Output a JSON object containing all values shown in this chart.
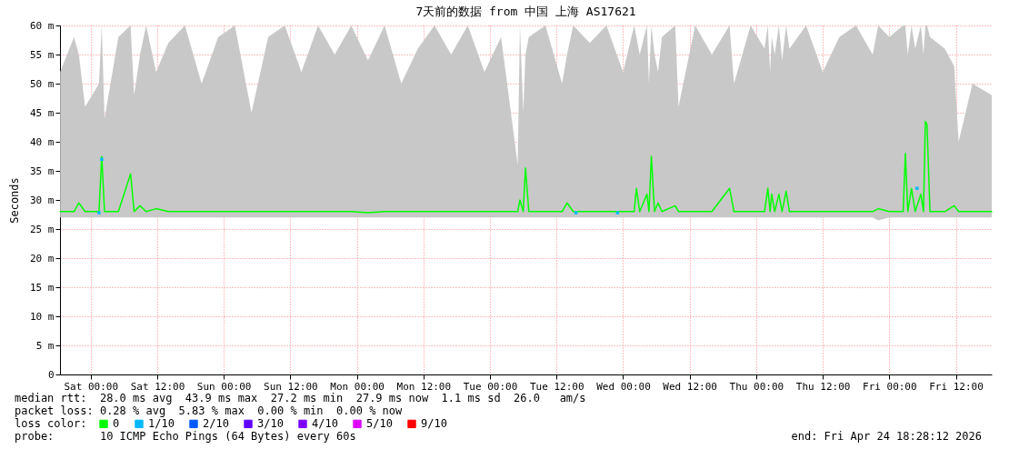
{
  "chart_data": {
    "type": "line",
    "title": "7天前的数据 from 中国 上海 AS17621",
    "ylabel": "Seconds",
    "legend_title": "loss color:",
    "legend": "bottom",
    "grid": true,
    "xlim": [
      "2026-04-17T18:28:12",
      "2026-04-24T18:28:12"
    ],
    "xticks": [
      {
        "value": "2026-04-18T00:00",
        "label": "Sat 00:00"
      },
      {
        "value": "2026-04-18T12:00",
        "label": "Sat 12:00"
      },
      {
        "value": "2026-04-19T00:00",
        "label": "Sun 00:00"
      },
      {
        "value": "2026-04-19T12:00",
        "label": "Sun 12:00"
      },
      {
        "value": "2026-04-20T00:00",
        "label": "Mon 00:00"
      },
      {
        "value": "2026-04-20T12:00",
        "label": "Mon 12:00"
      },
      {
        "value": "2026-04-21T00:00",
        "label": "Tue 00:00"
      },
      {
        "value": "2026-04-21T12:00",
        "label": "Tue 12:00"
      },
      {
        "value": "2026-04-22T00:00",
        "label": "Wed 00:00"
      },
      {
        "value": "2026-04-22T12:00",
        "label": "Wed 12:00"
      },
      {
        "value": "2026-04-23T00:00",
        "label": "Thu 00:00"
      },
      {
        "value": "2026-04-23T12:00",
        "label": "Thu 12:00"
      },
      {
        "value": "2026-04-24T00:00",
        "label": "Fri 00:00"
      },
      {
        "value": "2026-04-24T12:00",
        "label": "Fri 12:00"
      }
    ],
    "ylim": [
      0,
      60
    ],
    "yticks": [
      0,
      {
        "value": 5,
        "label": "5 m"
      },
      {
        "value": 10,
        "label": "10 m"
      },
      {
        "value": 15,
        "label": "15 m"
      },
      {
        "value": 20,
        "label": "20 m"
      },
      {
        "value": 25,
        "label": "25 m"
      },
      {
        "value": 30,
        "label": "30 m"
      },
      {
        "value": 35,
        "label": "35 m"
      },
      {
        "value": 40,
        "label": "40 m"
      },
      {
        "value": 45,
        "label": "45 m"
      },
      {
        "value": 50,
        "label": "50 m"
      },
      {
        "value": 55,
        "label": "55 m"
      },
      {
        "value": 60,
        "label": "60 m"
      }
    ],
    "annotations": [
      "median rtt:  28.0 ms avg  43.9 ms max  27.2 ms min  27.9 ms now  1.1 ms sd  26.0   am/s",
      "packet loss: 0.28 % avg  5.83 % max  0.00 % min  0.00 % now",
      "probe:       10 ICMP Echo Pings (64 Bytes) every 60s",
      "end: Fri Apr 24 18:28:12 2026"
    ],
    "series": [
      {
        "name": "0",
        "color": "#00ff00",
        "x": [
          "2026-04-17T18:30",
          "2026-04-17T21:00",
          "2026-04-17T21:52",
          "2026-04-17T23:00",
          "2026-04-18T01:30",
          "2026-04-18T02:00",
          "2026-04-18T02:30",
          "2026-04-18T05:00",
          "2026-04-18T07:12",
          "2026-04-18T07:50",
          "2026-04-18T08:54",
          "2026-04-18T10:00",
          "2026-04-18T11:48",
          "2026-04-18T14:00",
          "2026-04-18T17:00",
          "2026-04-18T20:00",
          "2026-04-18T23:00",
          "2026-04-19T02:00",
          "2026-04-19T05:00",
          "2026-04-19T08:00",
          "2026-04-19T11:00",
          "2026-04-19T14:00",
          "2026-04-19T17:00",
          "2026-04-19T20:00",
          "2026-04-19T23:00",
          "2026-04-20T02:00",
          "2026-04-20T05:00",
          "2026-04-20T08:00",
          "2026-04-20T11:00",
          "2026-04-20T14:00",
          "2026-04-20T17:00",
          "2026-04-20T20:00",
          "2026-04-20T23:00",
          "2026-04-21T02:00",
          "2026-04-21T05:00",
          "2026-04-21T05:24",
          "2026-04-21T06:00",
          "2026-04-21T06:24",
          "2026-04-21T07:00",
          "2026-04-21T10:00",
          "2026-04-21T13:00",
          "2026-04-21T13:54",
          "2026-04-21T15:00",
          "2026-04-21T18:00",
          "2026-04-21T21:00",
          "2026-04-22T00:00",
          "2026-04-22T02:00",
          "2026-04-22T02:24",
          "2026-04-22T03:00",
          "2026-04-22T04:18",
          "2026-04-22T04:40",
          "2026-04-22T05:06",
          "2026-04-22T05:40",
          "2026-04-22T06:18",
          "2026-04-22T07:00",
          "2026-04-22T09:24",
          "2026-04-22T10:00",
          "2026-04-22T13:00",
          "2026-04-22T16:00",
          "2026-04-22T19:12",
          "2026-04-22T20:00",
          "2026-04-22T23:00",
          "2026-04-23T01:30",
          "2026-04-23T02:06",
          "2026-04-23T02:30",
          "2026-04-23T02:48",
          "2026-04-23T03:20",
          "2026-04-23T04:06",
          "2026-04-23T04:40",
          "2026-04-23T05:24",
          "2026-04-23T06:00",
          "2026-04-23T09:00",
          "2026-04-23T12:00",
          "2026-04-23T15:00",
          "2026-04-23T18:00",
          "2026-04-23T21:00",
          "2026-04-23T22:00",
          "2026-04-24T00:00",
          "2026-04-24T02:30",
          "2026-04-24T02:54",
          "2026-04-24T03:20",
          "2026-04-24T04:00",
          "2026-04-24T04:40",
          "2026-04-24T05:42",
          "2026-04-24T06:10",
          "2026-04-24T06:30",
          "2026-04-24T06:48",
          "2026-04-24T07:20",
          "2026-04-24T10:00",
          "2026-04-24T11:42",
          "2026-04-24T12:30",
          "2026-04-24T15:00",
          "2026-04-24T18:28"
        ],
        "values": [
          28,
          28,
          29.5,
          28,
          28,
          37.5,
          28,
          28,
          34.5,
          28,
          29,
          28,
          28.5,
          28,
          28,
          28,
          28,
          28,
          28,
          28,
          28,
          28,
          28,
          28,
          28,
          27.8,
          28,
          28,
          28,
          28,
          28,
          28,
          28,
          28,
          28,
          30,
          28,
          35.5,
          28,
          28,
          28,
          29.5,
          28,
          28,
          28,
          28,
          28,
          32,
          28,
          31,
          28,
          37.5,
          28,
          29.5,
          28,
          29,
          28,
          28,
          28,
          32,
          28,
          28,
          28,
          32,
          28,
          31,
          28,
          31,
          28,
          31.5,
          28,
          28,
          28,
          28,
          28,
          28,
          28.5,
          28,
          28,
          38,
          28,
          32,
          28,
          31,
          28,
          43.5,
          43,
          28,
          28,
          29,
          28,
          28,
          28
        ],
        "lower": [
          27,
          27,
          27,
          27,
          27,
          27,
          27,
          27,
          27,
          27,
          27,
          27,
          27,
          27,
          27,
          27,
          27,
          27,
          27,
          27,
          27,
          27,
          27,
          27,
          27,
          27,
          27,
          27,
          27,
          27,
          27,
          27,
          27,
          27,
          27,
          27,
          27,
          27,
          27,
          27,
          27,
          27,
          27,
          27,
          27,
          27,
          27,
          27,
          27,
          27,
          27,
          27,
          27,
          27,
          27,
          27,
          27,
          27,
          27,
          27,
          27,
          27,
          27,
          27,
          27,
          27,
          27,
          27,
          27,
          27,
          27,
          27,
          27,
          27,
          27,
          27,
          26.5,
          27,
          27,
          27,
          27,
          27,
          27,
          27,
          27,
          27,
          27,
          27,
          27,
          27,
          27,
          27,
          27
        ],
        "upper": [
          52,
          58,
          55,
          46,
          50,
          60,
          44,
          58,
          60,
          48,
          55,
          60,
          52,
          57,
          60,
          50,
          58,
          60,
          45,
          58,
          60,
          52,
          60,
          55,
          60,
          54,
          60,
          50,
          56,
          60,
          55,
          60,
          52,
          58,
          36,
          60,
          45,
          55,
          58,
          60,
          50,
          55,
          60,
          57,
          60,
          52,
          60,
          58,
          55,
          60,
          50,
          60,
          55,
          52,
          58,
          60,
          46,
          60,
          55,
          60,
          50,
          60,
          56,
          60,
          52,
          58,
          55,
          60,
          54,
          60,
          56,
          60,
          52,
          58,
          60,
          55,
          60,
          58,
          60,
          60,
          55,
          60,
          56,
          60,
          55,
          60,
          60,
          58,
          56,
          53,
          40,
          50,
          48
        ]
      },
      {
        "name": "1/10",
        "type": "scatter",
        "color": "#00b8ff",
        "x": [
          "2026-04-18T01:30",
          "2026-04-18T02:00",
          "2026-04-21T15:30",
          "2026-04-21T23:00",
          "2026-04-24T05:00"
        ],
        "values": [
          27.8,
          37,
          27.8,
          27.8,
          32
        ]
      },
      {
        "name": "2/10",
        "type": "scatter",
        "color": "#0059ff"
      },
      {
        "name": "3/10",
        "type": "scatter",
        "color": "#5e00ff"
      },
      {
        "name": "4/10",
        "type": "scatter",
        "color": "#7e00ff"
      },
      {
        "name": "5/10",
        "type": "scatter",
        "color": "#dd00ff"
      },
      {
        "name": "9/10",
        "type": "scatter",
        "color": "#ff0000"
      }
    ]
  }
}
